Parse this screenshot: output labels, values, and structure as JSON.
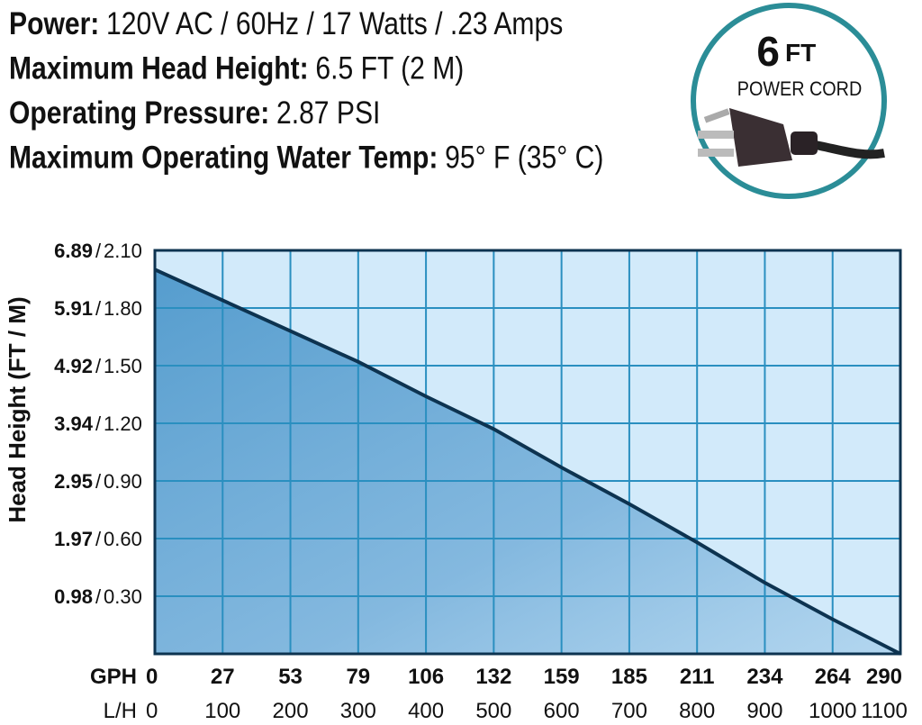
{
  "specs": [
    {
      "label": "Power:",
      "value": "120V AC / 60Hz / 17 Watts / .23 Amps"
    },
    {
      "label": "Maximum Head Height:",
      "value": "6.5 FT (2 M)"
    },
    {
      "label": "Operating Pressure:",
      "value": "2.87 PSI"
    },
    {
      "label": "Maximum Operating Water Temp:",
      "value": "95° F (35° C)"
    }
  ],
  "badge": {
    "number": "6",
    "unit": "FT",
    "caption": "POWER CORD"
  },
  "chart_data": {
    "type": "area",
    "y_label": "Head Height (FT / M)",
    "x_label_gph": "GPH",
    "x_label_lh": "L/H",
    "tick_separator": "/",
    "x": [
      0,
      100,
      200,
      300,
      400,
      500,
      600,
      700,
      800,
      900,
      1000,
      1100
    ],
    "series": [
      {
        "name": "Head Height",
        "color": "#0d3350",
        "values": [
          2.0,
          1.84,
          1.68,
          1.52,
          1.34,
          1.17,
          0.97,
          0.78,
          0.58,
          0.37,
          0.18,
          0
        ]
      }
    ],
    "xlim": [
      0,
      1100
    ],
    "xticks": [
      0,
      100,
      200,
      300,
      400,
      500,
      600,
      700,
      800,
      900,
      1000,
      1100
    ],
    "xticks_gph": [
      0,
      27,
      53,
      79,
      106,
      132,
      159,
      185,
      211,
      234,
      264,
      290
    ],
    "ylim": [
      0,
      2.1
    ],
    "yticks": [
      {
        "value": 0.3,
        "label": "0.30"
      },
      {
        "value": 0.6,
        "label": "0.60"
      },
      {
        "value": 0.9,
        "label": "0.90"
      },
      {
        "value": 1.2,
        "label": "1.20"
      },
      {
        "value": 1.5,
        "label": "1.50"
      },
      {
        "value": 1.8,
        "label": "1.80"
      },
      {
        "value": 2.1,
        "label": "2.10"
      }
    ],
    "yticks_ft": [
      0.98,
      1.97,
      2.95,
      3.94,
      4.92,
      5.91,
      6.89
    ],
    "grid": true
  }
}
